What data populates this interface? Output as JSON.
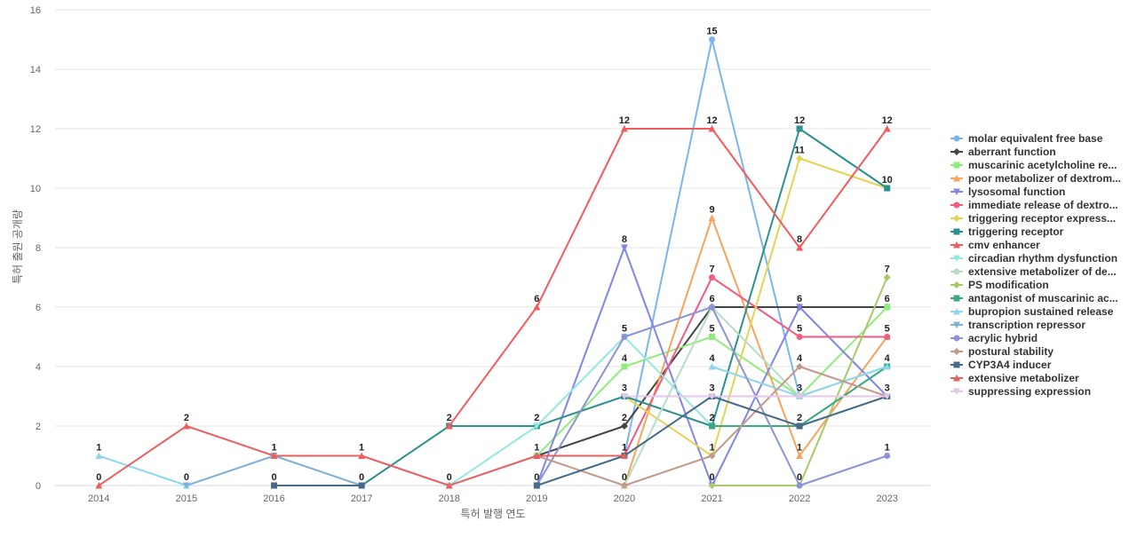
{
  "chart_data": {
    "type": "line",
    "xlabel": "특허 발행 연도",
    "ylabel": "특허 출원 공개량",
    "x": [
      2014,
      2015,
      2016,
      2017,
      2018,
      2019,
      2020,
      2021,
      2022,
      2023
    ],
    "ylim": [
      0,
      16
    ],
    "yticks": [
      0,
      2,
      4,
      6,
      8,
      10,
      12,
      14,
      16
    ],
    "grid": true,
    "legend_position": "right",
    "series": [
      {
        "name": "molar equivalent free base",
        "color": "#7cb5ec",
        "marker": "circle",
        "values": [
          null,
          null,
          null,
          null,
          null,
          null,
          1,
          15,
          3,
          null
        ]
      },
      {
        "name": "aberrant function",
        "color": "#434348",
        "marker": "diamond",
        "values": [
          null,
          null,
          null,
          null,
          null,
          1,
          2,
          6,
          6,
          6
        ]
      },
      {
        "name": "muscarinic acetylcholine re...",
        "color": "#90ed7d",
        "marker": "square",
        "values": [
          null,
          null,
          null,
          null,
          null,
          1,
          4,
          5,
          3,
          6
        ]
      },
      {
        "name": "poor metabolizer of dextrom...",
        "color": "#f7a35c",
        "marker": "triangle",
        "values": [
          null,
          null,
          null,
          null,
          null,
          null,
          0,
          9,
          1,
          5
        ]
      },
      {
        "name": "lysosomal function",
        "color": "#8085e9",
        "marker": "triangle-down",
        "values": [
          null,
          null,
          null,
          null,
          null,
          0,
          8,
          0,
          6,
          3
        ]
      },
      {
        "name": "immediate release of dextro...",
        "color": "#f15c80",
        "marker": "circle",
        "values": [
          null,
          null,
          null,
          null,
          null,
          null,
          1,
          7,
          5,
          5
        ]
      },
      {
        "name": "triggering receptor express...",
        "color": "#e4d354",
        "marker": "diamond",
        "values": [
          null,
          null,
          null,
          null,
          null,
          null,
          3,
          1,
          11,
          10
        ]
      },
      {
        "name": "triggering receptor",
        "color": "#2b908f",
        "marker": "square",
        "values": [
          null,
          null,
          null,
          0,
          2,
          2,
          3,
          2,
          12,
          10
        ]
      },
      {
        "name": "cmv enhancer",
        "color": "#f45b5b",
        "marker": "triangle",
        "values": [
          null,
          null,
          null,
          null,
          2,
          6,
          12,
          12,
          8,
          12
        ]
      },
      {
        "name": "circadian rhythm dysfunction",
        "color": "#91e8e1",
        "marker": "triangle-down",
        "values": [
          null,
          null,
          null,
          null,
          0,
          2,
          5,
          2,
          null,
          null
        ]
      },
      {
        "name": "extensive metabolizer of de...",
        "color": "#b5dec5",
        "marker": "circle",
        "values": [
          null,
          null,
          null,
          null,
          null,
          null,
          0,
          6,
          3,
          4
        ]
      },
      {
        "name": "PS modification",
        "color": "#a6c96a",
        "marker": "diamond",
        "values": [
          null,
          null,
          null,
          null,
          null,
          null,
          null,
          0,
          0,
          7
        ]
      },
      {
        "name": "antagonist of muscarinic ac...",
        "color": "#3aa980",
        "marker": "square",
        "values": [
          null,
          null,
          null,
          null,
          null,
          null,
          null,
          2,
          2,
          4
        ]
      },
      {
        "name": "bupropion sustained release",
        "color": "#8fd6ea",
        "marker": "triangle",
        "values": [
          1,
          0,
          null,
          null,
          null,
          null,
          null,
          4,
          3,
          4
        ]
      },
      {
        "name": "transcription repressor",
        "color": "#7cb1d9",
        "marker": "triangle-down",
        "values": [
          null,
          0,
          1,
          0,
          null,
          null,
          null,
          null,
          null,
          null
        ]
      },
      {
        "name": "acrylic hybrid",
        "color": "#8c93d6",
        "marker": "circle",
        "values": [
          null,
          null,
          null,
          null,
          null,
          0,
          5,
          6,
          0,
          1
        ]
      },
      {
        "name": "postural stability",
        "color": "#c29a8a",
        "marker": "diamond",
        "values": [
          null,
          null,
          null,
          null,
          null,
          1,
          0,
          1,
          4,
          3
        ]
      },
      {
        "name": "CYP3A4 inducer",
        "color": "#456a8a",
        "marker": "square",
        "values": [
          null,
          null,
          0,
          0,
          null,
          0,
          1,
          3,
          2,
          3
        ]
      },
      {
        "name": "extensive metabolizer",
        "color": "#e86060",
        "marker": "triangle",
        "values": [
          0,
          2,
          1,
          1,
          0,
          1,
          1,
          null,
          null,
          null
        ]
      },
      {
        "name": "suppressing expression",
        "color": "#e3c8e8",
        "marker": "triangle-down",
        "values": [
          null,
          null,
          null,
          null,
          null,
          null,
          3,
          3,
          3,
          3
        ]
      }
    ]
  }
}
